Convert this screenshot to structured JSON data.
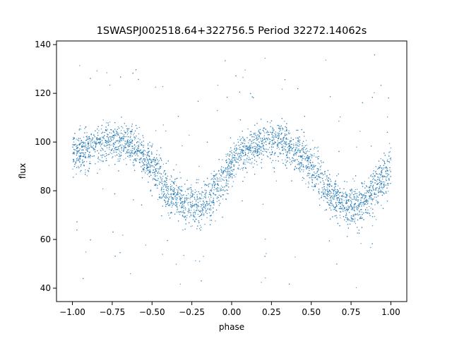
{
  "chart_data": {
    "type": "scatter",
    "title": "1SWASPJ002518.64+322756.5 Period 32272.14062s",
    "xlabel": "phase",
    "ylabel": "flux",
    "xlim": [
      -1.1,
      1.1
    ],
    "ylim": [
      34.5,
      141.5
    ],
    "xticks": [
      -1.0,
      -0.75,
      -0.5,
      -0.25,
      0.0,
      0.25,
      0.5,
      0.75,
      1.0
    ],
    "xtick_labels": [
      "−1.00",
      "−0.75",
      "−0.50",
      "−0.25",
      "0.00",
      "0.25",
      "0.50",
      "0.75",
      "1.00"
    ],
    "yticks": [
      40,
      60,
      80,
      100,
      120,
      140
    ],
    "ytick_labels": [
      "40",
      "60",
      "80",
      "100",
      "120",
      "140"
    ],
    "grid": false,
    "marker_color": "#1f77b4",
    "series": [
      {
        "points_sampled_from_curve": true,
        "phase_range": [
          -1.0,
          1.0
        ],
        "curve_phase": [
          -1.0,
          -0.9,
          -0.8,
          -0.75,
          -0.7,
          -0.6,
          -0.5,
          -0.4,
          -0.3,
          -0.25,
          -0.2,
          -0.1,
          0.0,
          0.1,
          0.2,
          0.25,
          0.3,
          0.4,
          0.5,
          0.6,
          0.7,
          0.75,
          0.8,
          0.9,
          1.0
        ],
        "curve_flux": [
          95,
          98,
          100,
          100.5,
          100,
          96,
          88,
          78,
          74,
          73.5,
          74,
          82,
          93,
          98,
          100,
          100.5,
          100,
          96,
          88,
          78,
          74,
          73.5,
          74,
          82,
          93
        ],
        "scatter_spread": 4,
        "outlier_range": [
          40,
          136
        ]
      }
    ]
  }
}
